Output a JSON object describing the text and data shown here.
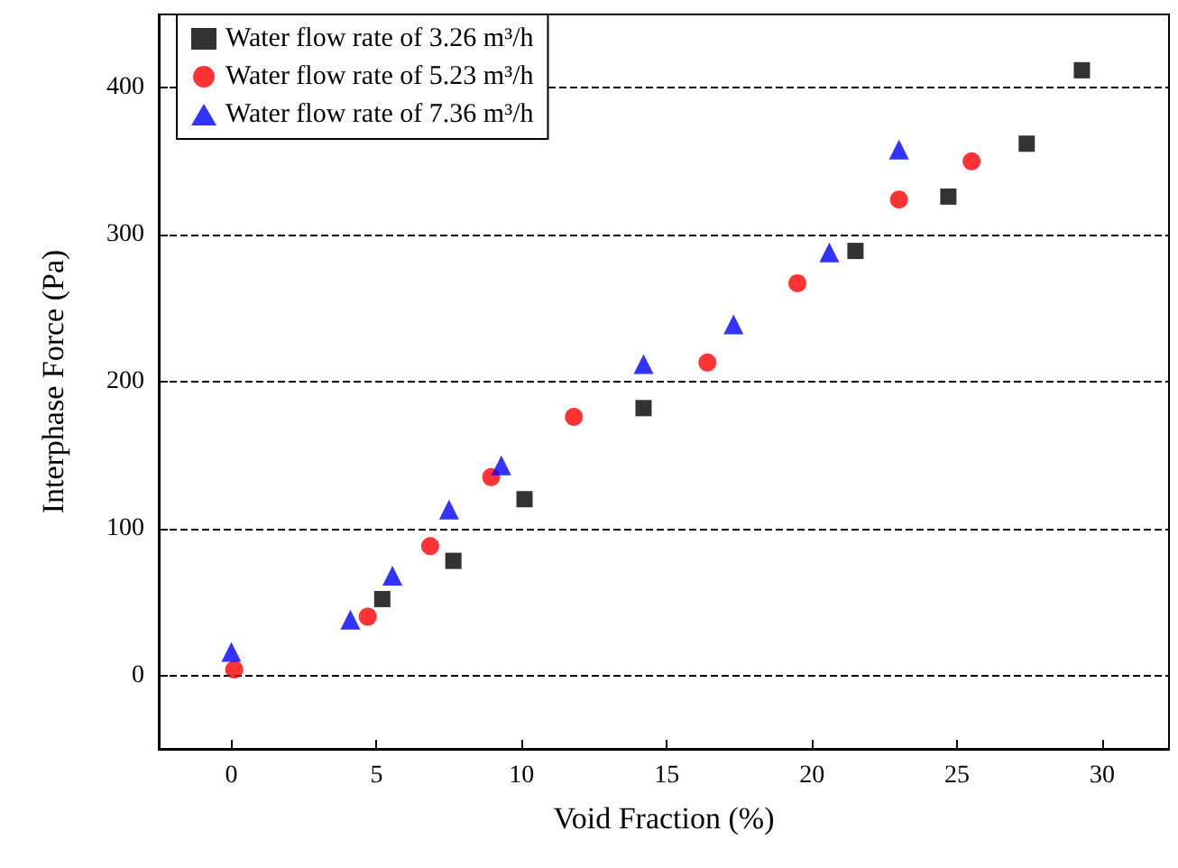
{
  "chart_data": {
    "type": "scatter",
    "xlabel": "Void Fraction (%)",
    "ylabel": "Interphase Force (Pa)",
    "xlim": [
      -2.5,
      32.3
    ],
    "ylim": [
      -50,
      450
    ],
    "xticks": [
      0,
      5,
      10,
      15,
      20,
      25,
      30
    ],
    "yticks": [
      0,
      100,
      200,
      300,
      400
    ],
    "grid": "y",
    "legend": "top left",
    "series": [
      {
        "name": "Water flow rate of 3.26 m³/h",
        "color": "#000000",
        "marker": "square",
        "x": [
          5.2,
          7.65,
          10.1,
          14.2,
          21.5,
          24.7,
          27.4,
          29.3
        ],
        "values": [
          52,
          78,
          120,
          182,
          289,
          326,
          362,
          412
        ]
      },
      {
        "name": "Water flow rate of 5.23 m³/h",
        "color": "#ff0000",
        "marker": "circle",
        "x": [
          0.1,
          4.7,
          6.85,
          8.95,
          11.8,
          16.4,
          19.5,
          23.0,
          25.5
        ],
        "values": [
          4,
          40,
          88,
          135,
          176,
          213,
          267,
          324,
          350
        ]
      },
      {
        "name": "Water flow rate of 7.36 m³/h",
        "color": "#0000ff",
        "marker": "triangle",
        "x": [
          0,
          4.1,
          5.55,
          7.5,
          9.3,
          14.2,
          17.3,
          20.6,
          23.0
        ],
        "values": [
          16,
          38,
          68,
          113,
          143,
          212,
          239,
          288,
          358
        ]
      }
    ]
  }
}
